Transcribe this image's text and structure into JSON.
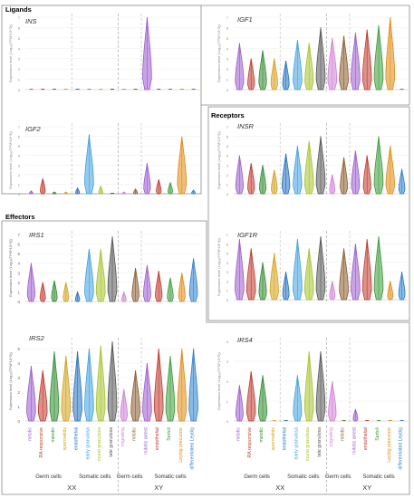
{
  "sections": {
    "ligands": "Ligands",
    "receptors": "Receptors",
    "effectors": "Effectors"
  },
  "y_axis_label": "Expression level (Log₁₀(TPM*10^3))",
  "y_ticks": [
    "0",
    "1",
    "2",
    "3",
    "4",
    "5",
    "6",
    "7"
  ],
  "categories": [
    "mitotic",
    "RA responsive",
    "meiotic",
    "spermatids",
    "endothelial",
    "early granulosa",
    "mural granulosa",
    "late granulosa",
    "migrating",
    "mitotic",
    "mitotic arrest",
    "endothelial",
    "Sertoli",
    "Leydig precursor",
    "differentiated Leydig"
  ],
  "category_colors": [
    "#9b59d0",
    "#c0392b",
    "#2e8b2e",
    "#d4a017",
    "#1f6fbf",
    "#3ea0e0",
    "#a6c22a",
    "#555555",
    "#cf7fd6",
    "#8b5a2b",
    "#9b59d0",
    "#c0392b",
    "#3a9a3a",
    "#e08a10",
    "#2a7fd0"
  ],
  "group_labels": {
    "germ": "Germ cells",
    "somatic": "Somatic cells"
  },
  "sex_labels": {
    "xx": "XX",
    "xy": "XY"
  },
  "chart_data": [
    {
      "type": "violin",
      "name": "INS",
      "categories_index": [
        0,
        1,
        2,
        3,
        4,
        5,
        6,
        7,
        8,
        9,
        10,
        11,
        12,
        13,
        14
      ],
      "max_values": [
        0.05,
        0.05,
        0.05,
        0.05,
        0.05,
        0.05,
        0.05,
        0.05,
        0.05,
        0.05,
        7,
        0.05,
        0.05,
        0.05,
        0.05
      ]
    },
    {
      "type": "violin",
      "name": "IGF2",
      "categories_index": [
        0,
        1,
        2,
        3,
        4,
        5,
        6,
        7,
        8,
        9,
        10,
        11,
        12,
        13,
        14
      ],
      "max_values": [
        0.3,
        1.6,
        0.2,
        0.2,
        0.6,
        6.2,
        0.8,
        0.1,
        0.2,
        0.5,
        3.2,
        1.5,
        1.2,
        6.0,
        0.4
      ]
    },
    {
      "type": "violin",
      "name": "IGF1",
      "categories_index": [
        0,
        1,
        2,
        3,
        4,
        5,
        6,
        7,
        8,
        9,
        10,
        11,
        12,
        13,
        14
      ],
      "max_values": [
        4.5,
        3.0,
        3.8,
        3.0,
        2.8,
        4.8,
        4.5,
        6.0,
        5.0,
        5.2,
        5.5,
        5.8,
        6.2,
        7.0,
        0.05
      ]
    },
    {
      "type": "violin",
      "name": "INSR",
      "categories_index": [
        0,
        1,
        2,
        3,
        4,
        5,
        6,
        7,
        8,
        9,
        10,
        11,
        12,
        13,
        14
      ],
      "max_values": [
        4.0,
        3.2,
        3.0,
        2.5,
        4.2,
        5.0,
        5.5,
        6.0,
        2.0,
        3.8,
        4.5,
        4.0,
        6.0,
        5.0,
        2.6
      ]
    },
    {
      "type": "violin",
      "name": "IGF1R",
      "categories_index": [
        0,
        1,
        2,
        3,
        4,
        5,
        6,
        7,
        8,
        9,
        10,
        11,
        12,
        13,
        14
      ],
      "max_values": [
        6.5,
        5.5,
        4.0,
        5.0,
        3.0,
        6.5,
        5.5,
        6.8,
        2.0,
        5.5,
        6.0,
        6.5,
        6.8,
        2.0,
        3.0
      ]
    },
    {
      "type": "violin",
      "name": "IRS1",
      "categories_index": [
        0,
        1,
        2,
        3,
        4,
        5,
        6,
        7,
        8,
        9,
        10,
        11,
        12,
        13,
        14
      ],
      "max_values": [
        4.0,
        2.0,
        2.2,
        2.0,
        1.0,
        5.5,
        5.5,
        6.8,
        1.0,
        3.5,
        3.8,
        3.2,
        2.5,
        3.0,
        4.5
      ]
    },
    {
      "type": "violin",
      "name": "IRS2",
      "categories_index": [
        0,
        1,
        2,
        3,
        4,
        5,
        6,
        7,
        8,
        9,
        10,
        11,
        12,
        13,
        14
      ],
      "max_values": [
        3.8,
        3.5,
        4.8,
        4.5,
        4.8,
        5.0,
        5.2,
        5.5,
        2.2,
        3.5,
        4.0,
        5.0,
        4.5,
        5.0,
        5.0
      ]
    },
    {
      "type": "violin",
      "name": "IRS4",
      "categories_index": [
        0,
        1,
        2,
        3,
        4,
        5,
        6,
        7,
        8,
        9,
        10,
        11,
        12,
        13,
        14
      ],
      "max_values": [
        1.8,
        2.5,
        2.3,
        0.1,
        0.1,
        2.3,
        3.5,
        3.5,
        2.0,
        0.1,
        0.6,
        0.1,
        0.1,
        0.1,
        0.1
      ]
    }
  ]
}
